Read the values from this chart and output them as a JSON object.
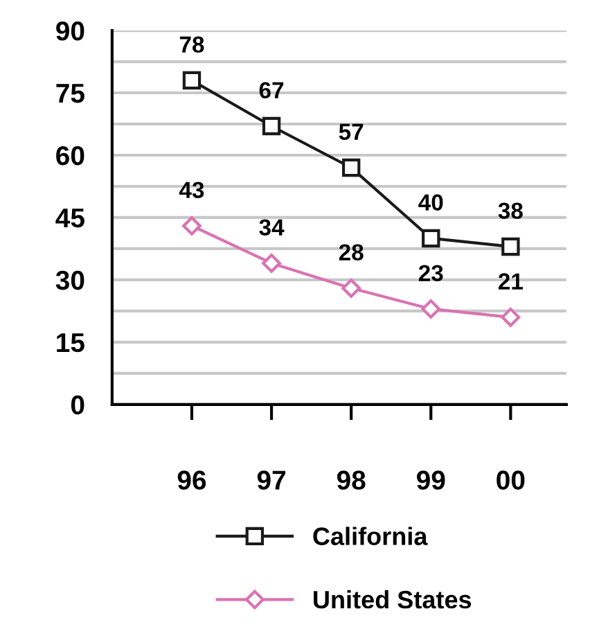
{
  "chart_data": {
    "type": "line",
    "categories": [
      "96",
      "97",
      "98",
      "99",
      "00"
    ],
    "series": [
      {
        "name": "California",
        "color": "#1a1a1a",
        "marker": "square",
        "values": [
          78,
          67,
          57,
          40,
          38
        ]
      },
      {
        "name": "United States",
        "color": "#d973b3",
        "marker": "diamond",
        "values": [
          43,
          34,
          28,
          23,
          21
        ]
      }
    ],
    "ylim": [
      0,
      90
    ],
    "yticks": [
      0,
      {
        "value": 7.5,
        "label": null
      },
      15,
      {
        "value": 22.5,
        "label": null
      },
      30,
      {
        "value": 37.5,
        "label": null
      },
      45,
      {
        "value": 52.5,
        "label": null
      },
      60,
      {
        "value": 67.5,
        "label": null
      },
      75,
      {
        "value": 82.5,
        "label": null
      },
      90
    ],
    "grid": "y",
    "legend": "bottom",
    "data_labels": true,
    "line_style": "solid"
  }
}
